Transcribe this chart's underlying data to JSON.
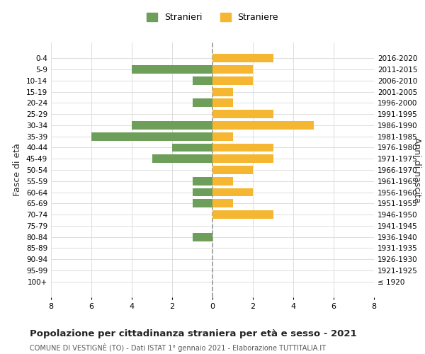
{
  "age_groups": [
    "100+",
    "95-99",
    "90-94",
    "85-89",
    "80-84",
    "75-79",
    "70-74",
    "65-69",
    "60-64",
    "55-59",
    "50-54",
    "45-49",
    "40-44",
    "35-39",
    "30-34",
    "25-29",
    "20-24",
    "15-19",
    "10-14",
    "5-9",
    "0-4"
  ],
  "birth_years": [
    "≤ 1920",
    "1921-1925",
    "1926-1930",
    "1931-1935",
    "1936-1940",
    "1941-1945",
    "1946-1950",
    "1951-1955",
    "1956-1960",
    "1961-1965",
    "1966-1970",
    "1971-1975",
    "1976-1980",
    "1981-1985",
    "1986-1990",
    "1991-1995",
    "1996-2000",
    "2001-2005",
    "2006-2010",
    "2011-2015",
    "2016-2020"
  ],
  "males": [
    0,
    0,
    0,
    0,
    1,
    0,
    0,
    1,
    1,
    1,
    0,
    3,
    2,
    6,
    4,
    0,
    1,
    0,
    1,
    4,
    0
  ],
  "females": [
    0,
    0,
    0,
    0,
    0,
    0,
    3,
    1,
    2,
    1,
    2,
    3,
    3,
    1,
    5,
    3,
    1,
    1,
    2,
    2,
    3
  ],
  "male_color": "#6d9e5a",
  "female_color": "#f5b731",
  "center_line_color": "#999999",
  "grid_color": "#dddddd",
  "title": "Popolazione per cittadinanza straniera per età e sesso - 2021",
  "subtitle": "COMUNE DI VESTIGNÈ (TO) - Dati ISTAT 1° gennaio 2021 - Elaborazione TUTTITALIA.IT",
  "ylabel_left": "Fasce di età",
  "ylabel_right": "Anni di nascita",
  "legend_male": "Stranieri",
  "legend_female": "Straniere",
  "xlim": 8,
  "background_color": "#ffffff"
}
